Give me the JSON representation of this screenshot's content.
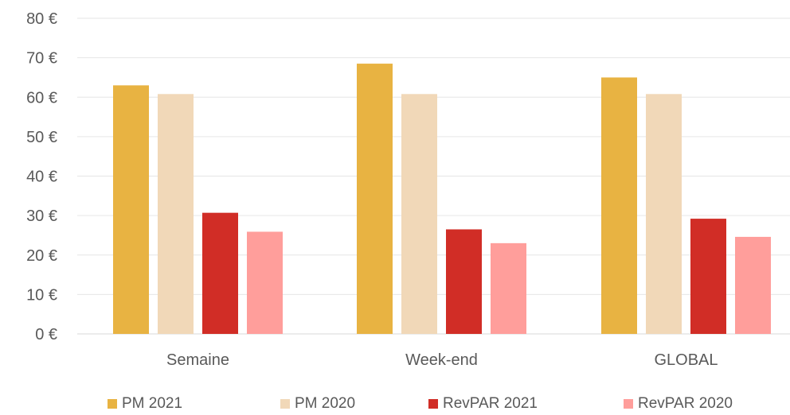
{
  "chart_data": {
    "type": "bar",
    "categories": [
      "Semaine",
      "Week-end",
      "GLOBAL"
    ],
    "series": [
      {
        "name": "PM 2021",
        "values": [
          63,
          68.5,
          65
        ],
        "color": "#E8B342"
      },
      {
        "name": "PM 2020",
        "values": [
          60.8,
          60.8,
          60.8
        ],
        "color": "#F1D8B8"
      },
      {
        "name": "RevPAR 2021",
        "values": [
          30.7,
          26.5,
          29.2
        ],
        "color": "#D12D26"
      },
      {
        "name": "RevPAR 2020",
        "values": [
          25.9,
          23,
          24.6
        ],
        "color": "#FF9E9B"
      }
    ],
    "yticks": [
      "0 €",
      "10 €",
      "20 €",
      "30 €",
      "40 €",
      "50 €",
      "60 €",
      "70 €",
      "80 €"
    ],
    "ylim": [
      0,
      80
    ],
    "grid": true,
    "legend_position": "bottom"
  }
}
